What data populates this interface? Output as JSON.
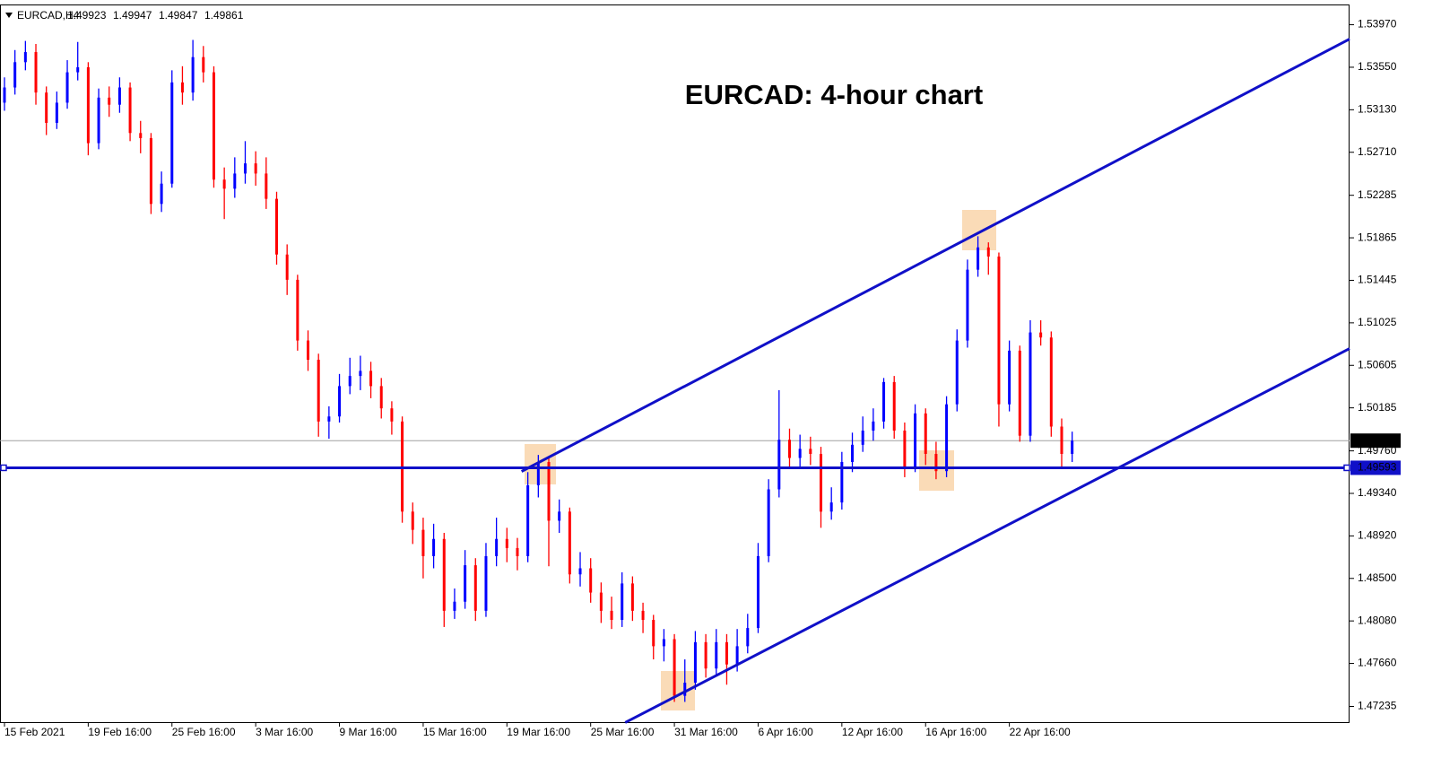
{
  "chart_data": {
    "type": "candlestick",
    "title": "EURCAD: 4-hour chart",
    "symbol": "EURCAD,H4",
    "quote": [
      1.49923,
      1.49947,
      1.49847,
      1.49861
    ],
    "up_color": "#0000ff",
    "down_color": "#ff0000",
    "line_color": "#1010c8",
    "xlim": [
      0,
      128.5
    ],
    "ylim": [
      1.4708,
      1.5417
    ],
    "xticks": [
      {
        "value": 0,
        "label": "15 Feb 2021"
      },
      {
        "value": 8,
        "label": "19 Feb 16:00"
      },
      {
        "value": 16,
        "label": "25 Feb 16:00"
      },
      {
        "value": 24,
        "label": "3 Mar 16:00"
      },
      {
        "value": 32,
        "label": "9 Mar 16:00"
      },
      {
        "value": 40,
        "label": "15 Mar 16:00"
      },
      {
        "value": 48,
        "label": "19 Mar 16:00"
      },
      {
        "value": 56,
        "label": "25 Mar 16:00"
      },
      {
        "value": 64,
        "label": "31 Mar 16:00"
      },
      {
        "value": 72,
        "label": "6 Apr 16:00"
      },
      {
        "value": 80,
        "label": "12 Apr 16:00"
      },
      {
        "value": 88,
        "label": "16 Apr 16:00"
      },
      {
        "value": 96,
        "label": "22 Apr 16:00"
      }
    ],
    "yticks": [
      {
        "value": 1.5397,
        "label": "1.53970"
      },
      {
        "value": 1.5355,
        "label": "1.53550"
      },
      {
        "value": 1.5313,
        "label": "1.53130"
      },
      {
        "value": 1.5271,
        "label": "1.52710"
      },
      1.52285,
      1.51865,
      1.51445,
      1.51025,
      1.50605,
      1.50185,
      {
        "value": 1.4976,
        "label": "1.49760"
      },
      {
        "value": 1.4934,
        "label": "1.49340"
      },
      {
        "value": 1.4892,
        "label": "1.48920"
      },
      {
        "value": 1.485,
        "label": "1.48500"
      },
      {
        "value": 1.4808,
        "label": "1.48080"
      },
      {
        "value": 1.4766,
        "label": "1.47660"
      },
      1.47235
    ],
    "hline": 1.49593,
    "last_price": 1.49861,
    "trendlines": [
      {
        "x": [
          49.4,
          128.5
        ],
        "y": [
          1.49557,
          1.53828
        ]
      },
      {
        "x": [
          59.3,
          128.5
        ],
        "y": [
          1.47076,
          1.50771
        ]
      }
    ],
    "open": [
      1.532,
      1.5335,
      1.536,
      1.537,
      1.533,
      1.53,
      1.532,
      1.535,
      1.5355,
      1.528,
      1.5325,
      1.5318,
      1.5335,
      1.529,
      1.5285,
      1.522,
      1.524,
      1.534,
      1.533,
      1.5365,
      1.535,
      1.5244,
      1.5235,
      1.525,
      1.526,
      1.525,
      1.5225,
      1.517,
      1.5145,
      1.5085,
      1.5066,
      1.5005,
      1.501,
      1.504,
      1.505,
      1.5055,
      1.504,
      1.5018,
      1.5005,
      1.4916,
      1.4898,
      1.4872,
      1.4889,
      1.4818,
      1.4827,
      1.4863,
      1.4818,
      1.4872,
      1.4889,
      1.488,
      1.4872,
      1.4942,
      1.4965,
      1.4907,
      1.4916,
      1.4854,
      1.486,
      1.4836,
      1.4818,
      1.4809,
      1.4845,
      1.4818,
      1.4809,
      1.4783,
      1.479,
      1.4734,
      1.4747,
      1.4787,
      1.4761,
      1.4787,
      1.4765,
      1.4783,
      1.4801,
      1.4872,
      1.4938,
      1.4987,
      1.4969,
      1.4978,
      1.4973,
      1.4916,
      1.4925,
      1.4965,
      1.4982,
      1.4996,
      1.5005,
      1.5044,
      1.4996,
      1.496,
      1.5013,
      1.4973,
      1.4956,
      1.5022,
      1.5085,
      1.5155,
      1.5177,
      1.5168,
      1.5022,
      1.5075,
      1.4991,
      1.5093,
      1.5088,
      1.5,
      1.4973
    ],
    "high": [
      1.5345,
      1.5372,
      1.5381,
      1.5378,
      1.5336,
      1.5331,
      1.5362,
      1.538,
      1.536,
      1.5334,
      1.5336,
      1.5345,
      1.534,
      1.5302,
      1.529,
      1.5252,
      1.5352,
      1.5356,
      1.5382,
      1.5376,
      1.5356,
      1.5256,
      1.5266,
      1.5282,
      1.5272,
      1.5266,
      1.5232,
      1.518,
      1.515,
      1.5095,
      1.5072,
      1.502,
      1.5052,
      1.5068,
      1.507,
      1.5064,
      1.5048,
      1.5025,
      1.501,
      1.4925,
      1.491,
      1.4904,
      1.4895,
      1.484,
      1.4878,
      1.487,
      1.4885,
      1.491,
      1.49,
      1.489,
      1.4955,
      1.4972,
      1.497,
      1.4928,
      1.492,
      1.4876,
      1.487,
      1.4846,
      1.4832,
      1.4856,
      1.4852,
      1.4826,
      1.4814,
      1.48,
      1.4795,
      1.477,
      1.4798,
      1.4795,
      1.48,
      1.4795,
      1.48,
      1.4815,
      1.4885,
      1.4948,
      1.5036,
      1.4998,
      1.4992,
      1.499,
      1.498,
      1.494,
      1.4975,
      1.4994,
      1.501,
      1.5018,
      1.5048,
      1.505,
      1.5004,
      1.5022,
      1.5018,
      1.4985,
      1.503,
      1.5096,
      1.5165,
      1.5188,
      1.5182,
      1.5172,
      1.5085,
      1.508,
      1.5105,
      1.5105,
      1.5094,
      1.5008,
      1.4995
    ],
    "low": [
      1.5312,
      1.5328,
      1.5352,
      1.5318,
      1.5288,
      1.5294,
      1.5314,
      1.5342,
      1.5268,
      1.5274,
      1.5306,
      1.531,
      1.5282,
      1.527,
      1.521,
      1.5212,
      1.5236,
      1.5318,
      1.5322,
      1.534,
      1.5236,
      1.5205,
      1.5226,
      1.524,
      1.5238,
      1.5215,
      1.516,
      1.513,
      1.5075,
      1.5055,
      1.499,
      1.4988,
      1.5004,
      1.5032,
      1.5036,
      1.5028,
      1.5008,
      1.4992,
      1.4905,
      1.4884,
      1.485,
      1.486,
      1.4802,
      1.481,
      1.482,
      1.4808,
      1.4812,
      1.4862,
      1.4866,
      1.4858,
      1.4866,
      1.493,
      1.4862,
      1.4895,
      1.4845,
      1.4842,
      1.4826,
      1.4806,
      1.48,
      1.4802,
      1.4808,
      1.4796,
      1.477,
      1.4768,
      1.4728,
      1.4728,
      1.474,
      1.4752,
      1.4755,
      1.4745,
      1.4758,
      1.4776,
      1.4796,
      1.4866,
      1.493,
      1.4958,
      1.496,
      1.4962,
      1.49,
      1.4908,
      1.4918,
      1.4955,
      1.4975,
      1.4986,
      1.4998,
      1.4988,
      1.495,
      1.4955,
      1.4962,
      1.4948,
      1.495,
      1.5015,
      1.5078,
      1.5148,
      1.515,
      1.5,
      1.5015,
      1.4985,
      1.4985,
      1.508,
      1.499,
      1.496,
      1.4965
    ],
    "close": [
      1.5335,
      1.536,
      1.537,
      1.533,
      1.53,
      1.532,
      1.535,
      1.5355,
      1.528,
      1.5325,
      1.5318,
      1.5335,
      1.529,
      1.5285,
      1.522,
      1.524,
      1.534,
      1.533,
      1.5365,
      1.535,
      1.5244,
      1.5235,
      1.525,
      1.526,
      1.525,
      1.5225,
      1.517,
      1.5145,
      1.5085,
      1.5066,
      1.5005,
      1.501,
      1.504,
      1.505,
      1.5055,
      1.504,
      1.5018,
      1.5005,
      1.4916,
      1.4898,
      1.4872,
      1.4889,
      1.4818,
      1.4827,
      1.4863,
      1.4818,
      1.4872,
      1.4889,
      1.488,
      1.4872,
      1.4942,
      1.4965,
      1.4907,
      1.4916,
      1.4854,
      1.486,
      1.4836,
      1.4818,
      1.4809,
      1.4845,
      1.4818,
      1.4809,
      1.4783,
      1.479,
      1.4734,
      1.4747,
      1.4787,
      1.4761,
      1.4787,
      1.4765,
      1.4783,
      1.4801,
      1.4872,
      1.4938,
      1.4987,
      1.4969,
      1.4978,
      1.4973,
      1.4916,
      1.4925,
      1.4965,
      1.4982,
      1.4996,
      1.5005,
      1.5044,
      1.4996,
      1.496,
      1.5013,
      1.4973,
      1.4956,
      1.5022,
      1.5085,
      1.5155,
      1.5177,
      1.5168,
      1.5022,
      1.5075,
      1.4991,
      1.5093,
      1.5088,
      1.5,
      1.4973,
      1.4986
    ]
  }
}
